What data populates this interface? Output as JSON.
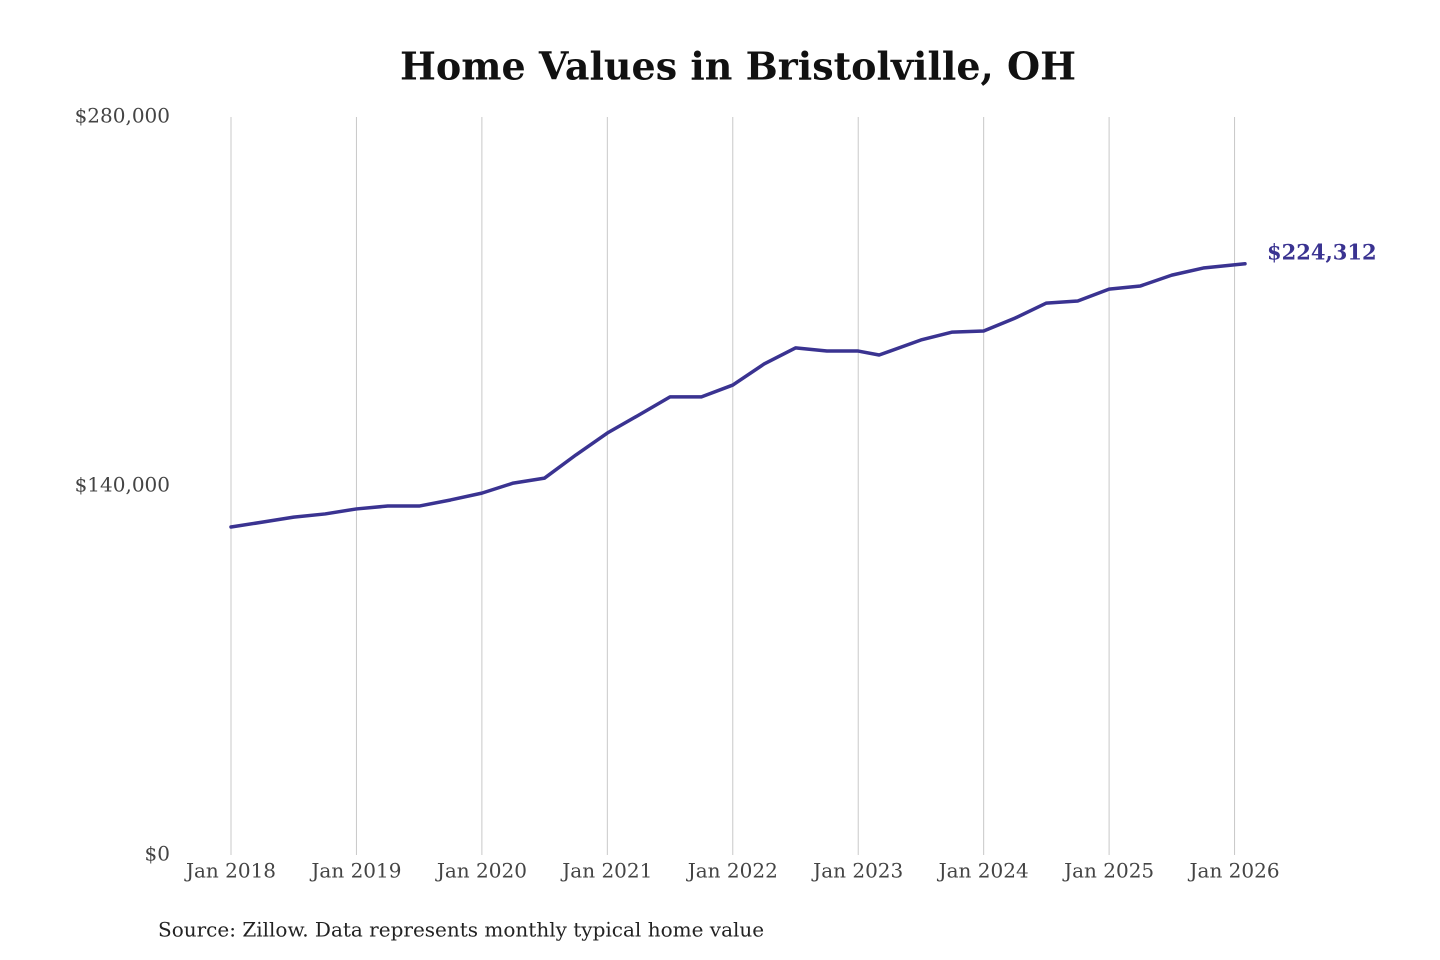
{
  "chart_data": {
    "type": "line",
    "title": "Home Values in Bristolville, OH",
    "source": "Source: Zillow. Data represents monthly typical home value",
    "x": [
      "2018-01",
      "2018-04",
      "2018-07",
      "2018-10",
      "2019-01",
      "2019-04",
      "2019-07",
      "2019-10",
      "2020-01",
      "2020-04",
      "2020-07",
      "2020-10",
      "2021-01",
      "2021-04",
      "2021-07",
      "2021-10",
      "2022-01",
      "2022-04",
      "2022-07",
      "2022-10",
      "2023-01",
      "2023-03",
      "2023-07",
      "2023-10",
      "2024-01",
      "2024-04",
      "2024-07",
      "2024-10",
      "2025-01",
      "2025-04",
      "2025-07",
      "2025-10",
      "2026-02"
    ],
    "series": [
      {
        "name": "Home value",
        "color": "#3a3391",
        "values": [
          124440,
          126300,
          128200,
          129400,
          131300,
          132400,
          132400,
          134700,
          137300,
          141100,
          143000,
          151800,
          160100,
          166900,
          173800,
          173800,
          178300,
          186300,
          192400,
          191200,
          191200,
          189700,
          195400,
          198400,
          198800,
          203700,
          209400,
          210200,
          214700,
          215900,
          220000,
          222700,
          224312
        ],
        "value_labels": [
          null,
          null,
          null,
          null,
          null,
          null,
          null,
          null,
          null,
          null,
          null,
          null,
          null,
          null,
          null,
          null,
          null,
          null,
          null,
          null,
          null,
          null,
          null,
          null,
          null,
          null,
          null,
          null,
          null,
          null,
          null,
          null,
          "$224,312"
        ]
      }
    ],
    "xlim": [
      "2018-01",
      "2026-02"
    ],
    "xticks": [
      {
        "value": "2018-01",
        "label": "Jan 2018"
      },
      {
        "value": "2019-01",
        "label": "Jan 2019"
      },
      {
        "value": "2020-01",
        "label": "Jan 2020"
      },
      {
        "value": "2021-01",
        "label": "Jan 2021"
      },
      {
        "value": "2022-01",
        "label": "Jan 2022"
      },
      {
        "value": "2023-01",
        "label": "Jan 2023"
      },
      {
        "value": "2024-01",
        "label": "Jan 2024"
      },
      {
        "value": "2025-01",
        "label": "Jan 2025"
      },
      {
        "value": "2026-01",
        "label": "Jan 2026"
      }
    ],
    "ylim": [
      0,
      280000
    ],
    "yticks": [
      {
        "value": 0,
        "label": "$0"
      },
      {
        "value": 140000,
        "label": "$140,000"
      },
      {
        "value": 280000,
        "label": "$280,000"
      }
    ],
    "grid": "x"
  }
}
